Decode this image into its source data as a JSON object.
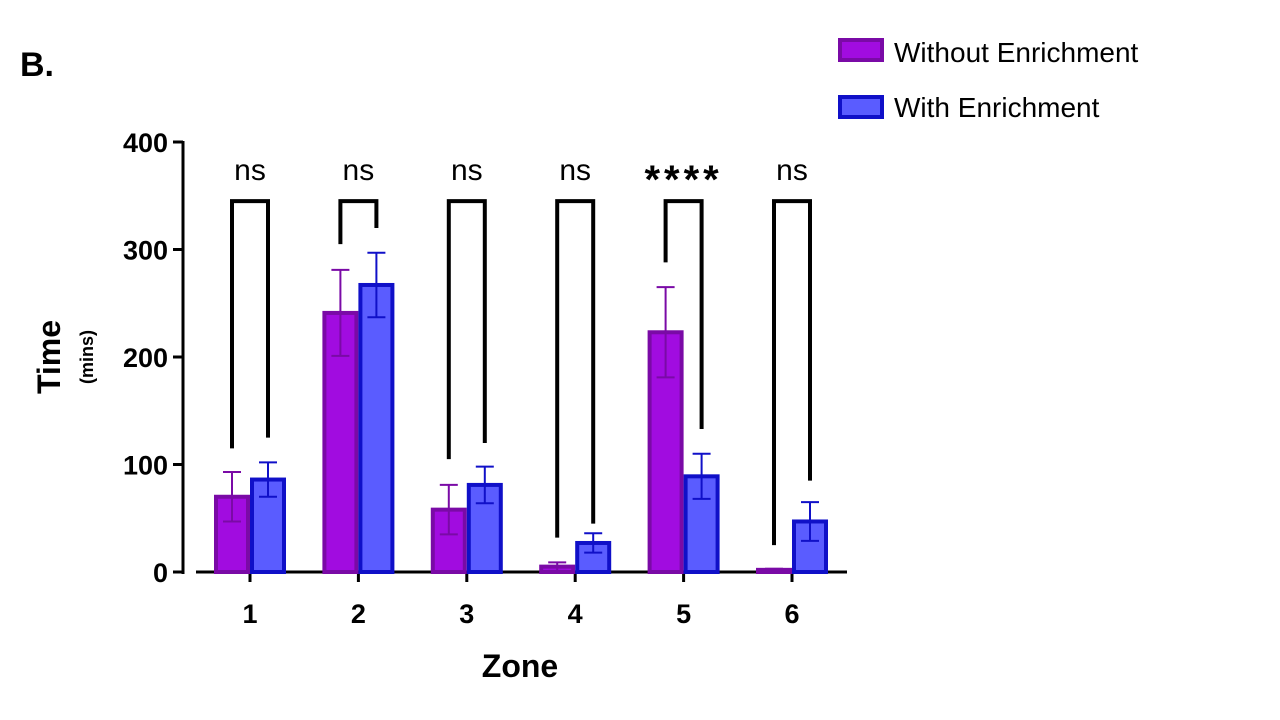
{
  "panel_label": "B.",
  "colors": {
    "without_fill": "#a10ce0",
    "without_stroke": "#7a0aa6",
    "with_fill": "#5a5cff",
    "with_stroke": "#1010c8",
    "axis": "#000000"
  },
  "chart_data": {
    "type": "bar",
    "xlabel": "Zone",
    "ylabel": "Time",
    "ylabel_sub": "(mins)",
    "ylim": [
      0,
      400
    ],
    "yticks": [
      "0",
      "100",
      "200",
      "300",
      "400"
    ],
    "categories": [
      "1",
      "2",
      "3",
      "4",
      "5",
      "6"
    ],
    "series": [
      {
        "name": "Without Enrichment",
        "values": [
          70,
          241,
          58,
          5,
          223,
          2
        ],
        "errors": [
          23,
          40,
          23,
          4,
          42,
          1
        ]
      },
      {
        "name": "With Enrichment",
        "values": [
          86,
          267,
          81,
          27,
          89,
          47
        ],
        "errors": [
          16,
          30,
          17,
          9,
          21,
          18
        ]
      }
    ],
    "significance": [
      {
        "label": "ns",
        "left_level": 115,
        "right_level": 125
      },
      {
        "label": "ns",
        "left_level": 305,
        "right_level": 320
      },
      {
        "label": "ns",
        "left_level": 105,
        "right_level": 120
      },
      {
        "label": "ns",
        "left_level": 32,
        "right_level": 45
      },
      {
        "label": "****",
        "left_level": 288,
        "right_level": 133
      },
      {
        "label": "ns",
        "left_level": 25,
        "right_level": 85
      }
    ],
    "bracket_top": 345,
    "legend_position": "top-right",
    "grid": false
  }
}
